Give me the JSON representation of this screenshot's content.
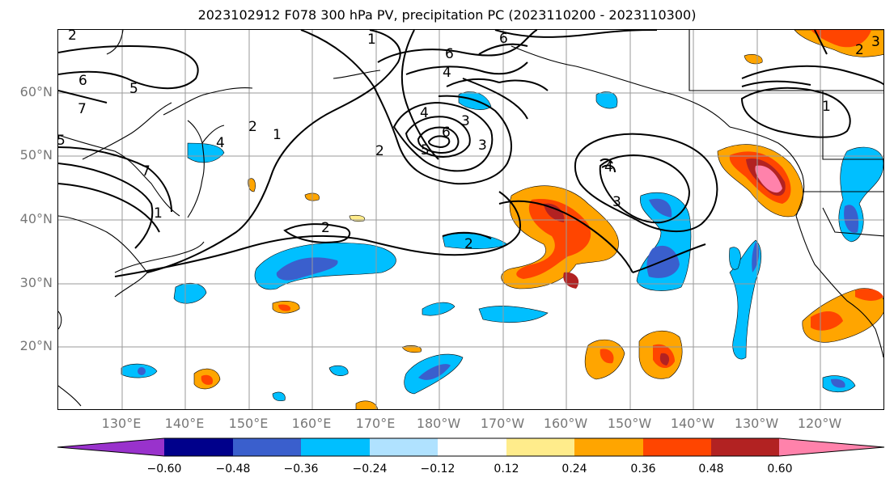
{
  "title": "2023102912 F078 300 hPa PV, precipitation PC (2023110200 - 2023110300)",
  "lat_labels": [
    "60°N",
    "50°N",
    "40°N",
    "30°N",
    "20°N"
  ],
  "lon_labels": [
    "130°E",
    "140°E",
    "150°E",
    "160°E",
    "170°E",
    "180°W",
    "170°W",
    "160°W",
    "150°W",
    "140°W",
    "130°W",
    "120°W"
  ],
  "contour_labels": [
    "2",
    "1",
    "2",
    "6",
    "5",
    "7",
    "5",
    "6",
    "4",
    "3",
    "2",
    "1",
    "1",
    "7",
    "2",
    "4",
    "6",
    "6",
    "3",
    "5",
    "4",
    "3",
    "4",
    "3",
    "2",
    "2",
    "1"
  ],
  "colorbar": {
    "colors": [
      "#9932CC",
      "#00008B",
      "#3A5FCD",
      "#00BFFF",
      "#B0E2FF",
      "#FFFFFF",
      "#FFEC8B",
      "#FFA500",
      "#FF4500",
      "#B22222",
      "#FF82AB"
    ],
    "ticks": [
      "−0.60",
      "−0.48",
      "−0.36",
      "−0.24",
      "−0.12",
      "0.12",
      "0.24",
      "0.36",
      "0.48",
      "0.60"
    ]
  },
  "colors": {
    "pos_light": "#FFEC8B",
    "pos_mid": "#FFA500",
    "pos_strong": "#FF4500",
    "pos_darker": "#B22222",
    "pos_max": "#FF82AB",
    "neg_light": "#B0E2FF",
    "neg_mid": "#00BFFF",
    "neg_strong": "#3A5FCD"
  }
}
